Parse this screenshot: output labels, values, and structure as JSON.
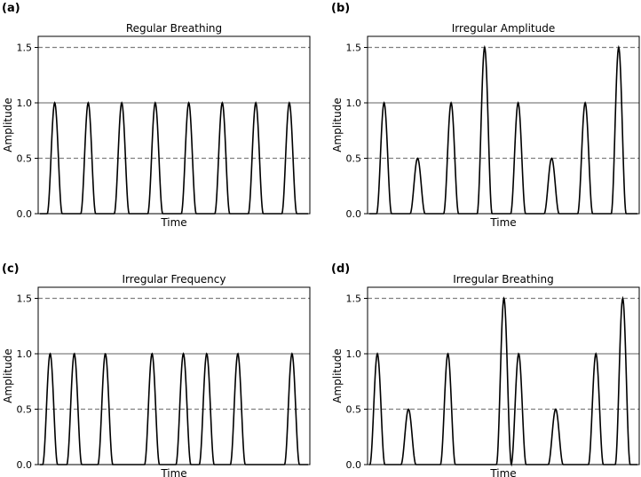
{
  "chart_data": [
    {
      "type": "line",
      "panel_label": "(a)",
      "title": "Regular Breathing",
      "xlabel": "Time",
      "ylabel": "Amplitude",
      "ylim": [
        0,
        1.6
      ],
      "yticks": [
        "0.0",
        "0.5",
        "1.0",
        "1.5"
      ],
      "reference_lines": [
        {
          "y": 1.5,
          "style": "dashed",
          "color": "#808080"
        },
        {
          "y": 1.0,
          "style": "solid",
          "color": "#808080"
        },
        {
          "y": 0.5,
          "style": "dashed",
          "color": "#808080"
        }
      ],
      "series": [
        {
          "peaks": [
            {
              "t": 0.055,
              "amplitude": 1.0
            },
            {
              "t": 0.18,
              "amplitude": 1.0
            },
            {
              "t": 0.305,
              "amplitude": 1.0
            },
            {
              "t": 0.43,
              "amplitude": 1.0
            },
            {
              "t": 0.555,
              "amplitude": 1.0
            },
            {
              "t": 0.68,
              "amplitude": 1.0
            },
            {
              "t": 0.805,
              "amplitude": 1.0
            },
            {
              "t": 0.93,
              "amplitude": 1.0
            }
          ],
          "color": "#000000"
        }
      ]
    },
    {
      "type": "line",
      "panel_label": "(b)",
      "title": "Irregular Amplitude",
      "xlabel": "Time",
      "ylabel": "Amplitude",
      "ylim": [
        0,
        1.6
      ],
      "yticks": [
        "0.0",
        "0.5",
        "1.0",
        "1.5"
      ],
      "reference_lines": [
        {
          "y": 1.5,
          "style": "dashed",
          "color": "#808080"
        },
        {
          "y": 1.0,
          "style": "solid",
          "color": "#808080"
        },
        {
          "y": 0.5,
          "style": "dashed",
          "color": "#808080"
        }
      ],
      "series": [
        {
          "peaks": [
            {
              "t": 0.055,
              "amplitude": 1.0
            },
            {
              "t": 0.18,
              "amplitude": 0.5
            },
            {
              "t": 0.305,
              "amplitude": 1.0
            },
            {
              "t": 0.43,
              "amplitude": 1.5
            },
            {
              "t": 0.555,
              "amplitude": 1.0
            },
            {
              "t": 0.68,
              "amplitude": 0.5
            },
            {
              "t": 0.805,
              "amplitude": 1.0
            },
            {
              "t": 0.93,
              "amplitude": 1.5
            }
          ],
          "color": "#000000"
        }
      ]
    },
    {
      "type": "line",
      "panel_label": "(c)",
      "title": "Irregular Frequency",
      "xlabel": "Time",
      "ylabel": "Amplitude",
      "ylim": [
        0,
        1.6
      ],
      "yticks": [
        "0.0",
        "0.5",
        "1.0",
        "1.5"
      ],
      "reference_lines": [
        {
          "y": 1.5,
          "style": "dashed",
          "color": "#808080"
        },
        {
          "y": 1.0,
          "style": "solid",
          "color": "#808080"
        },
        {
          "y": 0.5,
          "style": "dashed",
          "color": "#808080"
        }
      ],
      "series": [
        {
          "peaks": [
            {
              "t": 0.038,
              "amplitude": 1.0
            },
            {
              "t": 0.128,
              "amplitude": 1.0
            },
            {
              "t": 0.244,
              "amplitude": 1.0
            },
            {
              "t": 0.418,
              "amplitude": 1.0
            },
            {
              "t": 0.535,
              "amplitude": 1.0
            },
            {
              "t": 0.622,
              "amplitude": 1.0
            },
            {
              "t": 0.738,
              "amplitude": 1.0
            },
            {
              "t": 0.94,
              "amplitude": 1.0
            }
          ],
          "color": "#000000"
        }
      ]
    },
    {
      "type": "line",
      "panel_label": "(d)",
      "title": "Irregular Breathing",
      "xlabel": "Time",
      "ylabel": "Amplitude",
      "ylim": [
        0,
        1.6
      ],
      "yticks": [
        "0.0",
        "0.5",
        "1.0",
        "1.5"
      ],
      "reference_lines": [
        {
          "y": 1.5,
          "style": "dashed",
          "color": "#808080"
        },
        {
          "y": 1.0,
          "style": "solid",
          "color": "#808080"
        },
        {
          "y": 0.5,
          "style": "dashed",
          "color": "#808080"
        }
      ],
      "series": [
        {
          "peaks": [
            {
              "t": 0.03,
              "amplitude": 1.0
            },
            {
              "t": 0.146,
              "amplitude": 0.5
            },
            {
              "t": 0.293,
              "amplitude": 1.0
            },
            {
              "t": 0.502,
              "amplitude": 1.5
            },
            {
              "t": 0.557,
              "amplitude": 1.0
            },
            {
              "t": 0.695,
              "amplitude": 0.5
            },
            {
              "t": 0.845,
              "amplitude": 1.0
            },
            {
              "t": 0.945,
              "amplitude": 1.5
            }
          ],
          "color": "#000000"
        }
      ]
    }
  ]
}
